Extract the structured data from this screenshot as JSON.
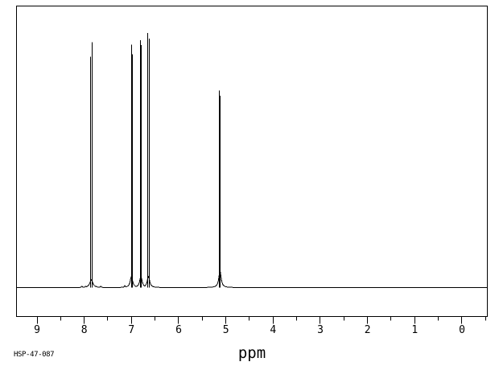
{
  "colors": {
    "background": "#ffffff",
    "ink": "#000000"
  },
  "labels": {
    "sample_id": "HSP-47-087",
    "x_axis_unit": "ppm"
  },
  "chart_data": {
    "type": "line",
    "description": "1H NMR spectrum trace, black on white",
    "xlabel": "ppm",
    "title": "",
    "grid": false,
    "x_axis": {
      "min": -0.55,
      "max": 9.45,
      "direction": "reversed",
      "major_ticks": [
        9,
        8,
        7,
        6,
        5,
        4,
        3,
        2,
        1,
        0
      ],
      "major_tick_labels": [
        "9",
        "8",
        "7",
        "6",
        "5",
        "4",
        "3",
        "2",
        "1",
        "0"
      ],
      "minor_tick_step": 0.5
    },
    "y_axis": {
      "shown": false
    },
    "baseline_level": 0,
    "height_unit": "fraction of plot height above baseline",
    "peaks": [
      {
        "id": "doublet-7.85-ppm",
        "center_ppm": 7.85,
        "lines": [
          [
            7.868,
            0.82
          ],
          [
            7.829,
            0.872
          ]
        ],
        "foot": [
          7.85,
          0.028,
          2.2
        ]
      },
      {
        "id": "peak-7.00-ppm",
        "center_ppm": 7.0,
        "lines": [
          [
            7.003,
            0.863
          ],
          [
            6.986,
            0.828
          ]
        ],
        "foot": [
          7.0,
          0.04,
          1.8
        ]
      },
      {
        "id": "peak-6.80-ppm",
        "center_ppm": 6.8,
        "lines": [
          [
            6.812,
            0.878
          ],
          [
            6.79,
            0.862
          ]
        ],
        "foot": [
          6.8,
          0.04,
          1.8
        ]
      },
      {
        "id": "peak-6.64-ppm",
        "center_ppm": 6.64,
        "lines": [
          [
            6.65,
            0.905
          ],
          [
            6.628,
            0.885
          ]
        ],
        "foot": [
          6.64,
          0.04,
          1.8
        ]
      },
      {
        "id": "singlet-5.12-ppm",
        "center_ppm": 5.12,
        "lines": [
          [
            5.132,
            0.7
          ],
          [
            5.117,
            0.682
          ]
        ],
        "foot": [
          5.125,
          0.06,
          1.7
        ]
      }
    ],
    "minor_bumps": [
      [
        8.05,
        0.005
      ],
      [
        7.97,
        0.005
      ],
      [
        7.75,
        0.005
      ],
      [
        7.65,
        0.005
      ],
      [
        7.14,
        0.007
      ]
    ]
  }
}
